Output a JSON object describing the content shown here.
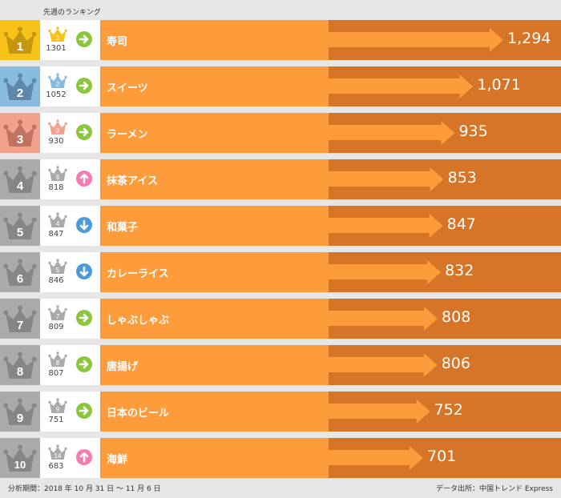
{
  "header": {
    "label": "先週のランキング"
  },
  "colors": {
    "rank1": "#f9c218",
    "rank2": "#88bbe0",
    "rank3": "#f3a08c",
    "rank_other": "#aaaaaa",
    "bar": "#fe9b3b",
    "bar_dark": "#d67428",
    "up": "#f57bb0",
    "down": "#4a9bd9",
    "same": "#8cc63f"
  },
  "rows": [
    {
      "rank": "1",
      "name": "寿司",
      "value": "1,294",
      "num": 1294,
      "prev_rank": "1",
      "prev_value": "1301",
      "trend": "same"
    },
    {
      "rank": "2",
      "name": "スイーツ",
      "value": "1,071",
      "num": 1071,
      "prev_rank": "2",
      "prev_value": "1052",
      "trend": "same"
    },
    {
      "rank": "3",
      "name": "ラーメン",
      "value": "935",
      "num": 935,
      "prev_rank": "3",
      "prev_value": "930",
      "trend": "same"
    },
    {
      "rank": "4",
      "name": "抹茶アイス",
      "value": "853",
      "num": 853,
      "prev_rank": "6",
      "prev_value": "818",
      "trend": "up"
    },
    {
      "rank": "5",
      "name": "和菓子",
      "value": "847",
      "num": 847,
      "prev_rank": "4",
      "prev_value": "847",
      "trend": "down"
    },
    {
      "rank": "6",
      "name": "カレーライス",
      "value": "832",
      "num": 832,
      "prev_rank": "5",
      "prev_value": "846",
      "trend": "down"
    },
    {
      "rank": "7",
      "name": "しゃぶしゃぶ",
      "value": "808",
      "num": 808,
      "prev_rank": "7",
      "prev_value": "809",
      "trend": "same"
    },
    {
      "rank": "8",
      "name": "唐揚げ",
      "value": "806",
      "num": 806,
      "prev_rank": "8",
      "prev_value": "807",
      "trend": "same"
    },
    {
      "rank": "9",
      "name": "日本のビール",
      "value": "752",
      "num": 752,
      "prev_rank": "9",
      "prev_value": "751",
      "trend": "same"
    },
    {
      "rank": "10",
      "name": "海鮮",
      "value": "701",
      "num": 701,
      "prev_rank": "14",
      "prev_value": "683",
      "trend": "up"
    }
  ],
  "footer": {
    "period": "分析期間：2018 年 10 月 31 日 ～ 11 月 6 日",
    "source": "データ出所：中国トレンド Express"
  }
}
